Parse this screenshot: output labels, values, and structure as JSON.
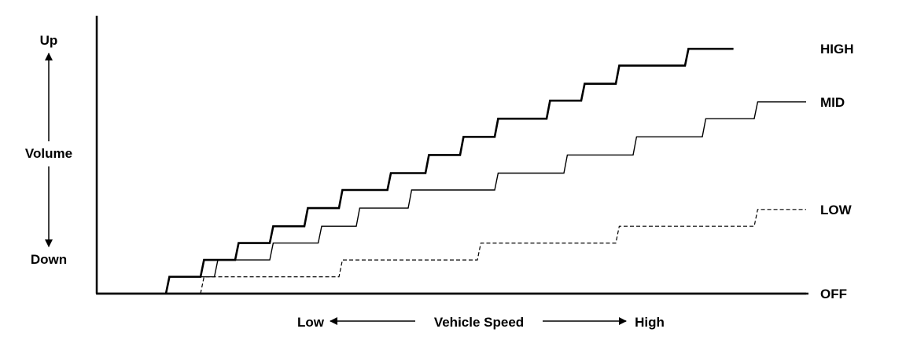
{
  "chart_data": {
    "type": "line",
    "title": "",
    "xlabel": "Vehicle Speed",
    "ylabel": "Volume",
    "x_low_label": "Low",
    "x_high_label": "High",
    "y_up_label": "Up",
    "y_down_label": "Down",
    "line_color": "#000000",
    "background": "#ffffff",
    "grid": false,
    "xlim": [
      0,
      100
    ],
    "ylim": [
      0,
      100
    ],
    "series": [
      {
        "name": "HIGH",
        "style": "thick",
        "points": [
          [
            10,
            0
          ],
          [
            10.5,
            6.5
          ],
          [
            15,
            6.5
          ],
          [
            15.5,
            13
          ],
          [
            20,
            13
          ],
          [
            20.5,
            19.5
          ],
          [
            25,
            19.5
          ],
          [
            25.5,
            26
          ],
          [
            30,
            26
          ],
          [
            30.5,
            33
          ],
          [
            35,
            33
          ],
          [
            35.5,
            40
          ],
          [
            42,
            40
          ],
          [
            42.5,
            46.5
          ],
          [
            47.5,
            46.5
          ],
          [
            48,
            53.5
          ],
          [
            52.5,
            53.5
          ],
          [
            53,
            60.5
          ],
          [
            57.5,
            60.5
          ],
          [
            58,
            67.5
          ],
          [
            65,
            67.5
          ],
          [
            65.5,
            74.5
          ],
          [
            70,
            74.5
          ],
          [
            70.5,
            81
          ],
          [
            75,
            81
          ],
          [
            75.5,
            88
          ],
          [
            85,
            88
          ],
          [
            85.5,
            94.5
          ],
          [
            92,
            94.5
          ]
        ]
      },
      {
        "name": "MID",
        "style": "thin",
        "points": [
          [
            10,
            0
          ],
          [
            10.5,
            6.5
          ],
          [
            17,
            6.5
          ],
          [
            17.5,
            13
          ],
          [
            25,
            13
          ],
          [
            25.5,
            19.5
          ],
          [
            32,
            19.5
          ],
          [
            32.5,
            26
          ],
          [
            37.5,
            26
          ],
          [
            38,
            33
          ],
          [
            45,
            33
          ],
          [
            45.5,
            40
          ],
          [
            57.5,
            40
          ],
          [
            58,
            46.5
          ],
          [
            67.5,
            46.5
          ],
          [
            68,
            53.5
          ],
          [
            77.5,
            53.5
          ],
          [
            78,
            60.5
          ],
          [
            87.5,
            60.5
          ],
          [
            88,
            67.5
          ],
          [
            95,
            67.5
          ],
          [
            95.5,
            74
          ],
          [
            102.5,
            74
          ]
        ]
      },
      {
        "name": "LOW",
        "style": "dashed",
        "points": [
          [
            15,
            0
          ],
          [
            15.5,
            6.5
          ],
          [
            35,
            6.5
          ],
          [
            35.5,
            13
          ],
          [
            55,
            13
          ],
          [
            55.5,
            19.5
          ],
          [
            75,
            19.5
          ],
          [
            75.5,
            26
          ],
          [
            95,
            26
          ],
          [
            95.5,
            32.5
          ],
          [
            102.5,
            32.5
          ]
        ]
      },
      {
        "name": "OFF",
        "style": "thick",
        "points": [
          [
            0,
            0
          ],
          [
            102.5,
            0
          ]
        ]
      }
    ]
  }
}
